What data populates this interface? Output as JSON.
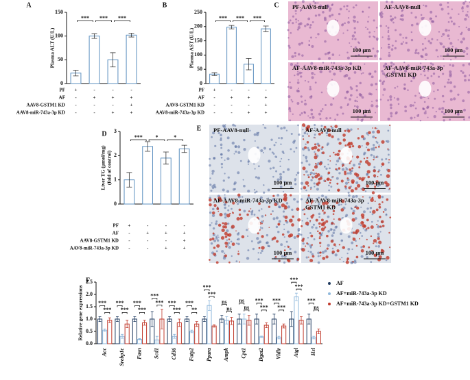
{
  "chart_data": [
    {
      "type": "bar",
      "panel": "A",
      "y_label": "Plasma ALT (U/L)",
      "color": "#5b8fbf",
      "categories": [
        null,
        null,
        null,
        null
      ],
      "values": [
        22,
        100,
        50,
        102
      ],
      "errors": [
        6,
        5,
        15,
        4
      ],
      "ylim": [
        0,
        150
      ],
      "yticks": [
        0,
        50,
        100,
        150
      ],
      "significance": [
        "***",
        "***",
        "***"
      ],
      "conditions": {
        "labels": [
          "PF",
          "AF",
          "AAV8-GSTM1 KD",
          "AAV8-miR-743a-3p KD"
        ],
        "rows": [
          [
            "+",
            "-",
            "-",
            "-"
          ],
          [
            "-",
            "+",
            "+",
            "+"
          ],
          [
            "-",
            "-",
            "-",
            "+"
          ],
          [
            "-",
            "-",
            "+",
            "+"
          ]
        ]
      }
    },
    {
      "type": "bar",
      "panel": "B",
      "y_label": "Plasma AST (U/L)",
      "color": "#5b8fbf",
      "categories": [
        null,
        null,
        null,
        null
      ],
      "values": [
        33,
        198,
        68,
        192
      ],
      "errors": [
        5,
        6,
        20,
        10
      ],
      "ylim": [
        0,
        250
      ],
      "yticks": [
        0,
        50,
        100,
        150,
        200,
        250
      ],
      "significance": [
        "***",
        "***",
        "***"
      ],
      "conditions": {
        "labels": [
          "PF",
          "AF",
          "AAV8-GSTM1 KD",
          "AAV8-miR-743a-3p KD"
        ],
        "rows": [
          [
            "+",
            "-",
            "-",
            "-"
          ],
          [
            "-",
            "+",
            "+",
            "+"
          ],
          [
            "-",
            "-",
            "-",
            "+"
          ],
          [
            "-",
            "-",
            "+",
            "+"
          ]
        ]
      }
    },
    {
      "type": "bar",
      "panel": "D",
      "y_label": "Liver TG (μmol/mg)",
      "y_label_2": "(fold of control)",
      "color": "#5b8fbf",
      "categories": [
        null,
        null,
        null,
        null
      ],
      "values": [
        1.0,
        2.38,
        1.9,
        2.28
      ],
      "errors": [
        0.3,
        0.2,
        0.25,
        0.15
      ],
      "ylim": [
        0,
        3
      ],
      "yticks": [
        0,
        1,
        2,
        3
      ],
      "significance": [
        "***",
        "*",
        "*"
      ],
      "conditions": {
        "labels": [
          "PF",
          "AF",
          "AAV8-GSTM1 KD",
          "AAV8-miR-743a-3p KD"
        ],
        "rows": [
          [
            "+",
            "-",
            "-",
            "-"
          ],
          [
            "-",
            "+",
            "+",
            "+"
          ],
          [
            "-",
            "-",
            "-",
            "+"
          ],
          [
            "-",
            "-",
            "+",
            "+"
          ]
        ]
      }
    },
    {
      "type": "grouped-bar",
      "panel": "F",
      "y_label": "Relative gene expressions",
      "categories": [
        "Acc",
        "Srebp1c",
        "Fasn",
        "Scd1",
        "Cd36",
        "Fatp2",
        "Ppara",
        "Ampk",
        "Cpt1",
        "Dgat2",
        "Vldlr",
        "Atgl",
        "Hsl"
      ],
      "series": [
        {
          "name": "AF",
          "color": "#1f3a5f",
          "values": [
            1.0,
            1.0,
            1.0,
            1.0,
            1.0,
            1.0,
            1.0,
            1.0,
            1.0,
            1.0,
            1.0,
            1.0,
            1.0
          ],
          "errors": [
            0.1,
            0.1,
            0.1,
            0.3,
            0.1,
            0.1,
            0.1,
            0.15,
            0.2,
            0.2,
            0.2,
            0.3,
            0.2
          ]
        },
        {
          "name": "AF+miR-743a-3p KD",
          "color": "#8fb8dc",
          "values": [
            0.55,
            0.3,
            0.18,
            0.15,
            0.3,
            0.5,
            1.55,
            0.95,
            1.0,
            0.28,
            0.25,
            1.9,
            0.25
          ],
          "errors": [
            0.05,
            0.08,
            0.03,
            0.15,
            0.08,
            0.05,
            0.2,
            0.15,
            0.2,
            0.03,
            0.05,
            0.15,
            0.05
          ]
        },
        {
          "name": "AF+miR-743a-3p KD+GSTM1 KD",
          "color": "#c0392b",
          "values": [
            0.95,
            0.8,
            0.85,
            1.0,
            0.85,
            0.8,
            0.72,
            0.92,
            0.95,
            0.75,
            0.72,
            0.95,
            0.5
          ],
          "errors": [
            0.1,
            0.15,
            0.1,
            0.4,
            0.15,
            0.1,
            0.05,
            0.15,
            0.2,
            0.1,
            0.08,
            0.15,
            0.1
          ]
        }
      ],
      "ylim": [
        0,
        2.5
      ],
      "yticks": [
        {
          "value": 0,
          "label": "0.0"
        },
        {
          "value": 0.5,
          "label": "0.5"
        },
        {
          "value": 1,
          "label": "1.0"
        },
        {
          "value": 1.5,
          "label": "1.5"
        },
        {
          "value": 2,
          "label": "2.0"
        },
        {
          "value": 2.5,
          "label": "2.5"
        }
      ],
      "significance": [
        [
          "***",
          "***"
        ],
        [
          "***",
          "***"
        ],
        [
          "***",
          "***"
        ],
        [
          "***",
          "***"
        ],
        [
          "***",
          "***"
        ],
        [
          "***",
          "**"
        ],
        [
          "***",
          "***"
        ],
        [
          "ns",
          "ns"
        ],
        [
          "ns",
          "ns"
        ],
        [
          "***",
          "***"
        ],
        [
          "***",
          "***"
        ],
        [
          "***",
          "***"
        ],
        [
          "***",
          "ns"
        ]
      ]
    }
  ],
  "micrographs": [
    {
      "panel": "C",
      "images": [
        {
          "lines": [
            "PF-AAV8-null"
          ],
          "scale": "100 μm"
        },
        {
          "lines": [
            "AF-AAV8-null"
          ],
          "scale": "100 μm"
        },
        {
          "lines": [
            "AF-AAV8-miR-743a-3p KD"
          ],
          "scale": "100 μm"
        },
        {
          "lines": [
            "AF-AAV8-miR-743a-3p",
            "-GSTM1 KD"
          ],
          "scale": "100 μm"
        }
      ]
    },
    {
      "panel": "E",
      "images": [
        {
          "lines": [
            "PF-AAV8-null"
          ],
          "scale": "100 μm"
        },
        {
          "lines": [
            "AF-AAV8-null"
          ],
          "scale": "100 μm"
        },
        {
          "lines": [
            "AF-AAV8-miR-743a-3p KD"
          ],
          "scale": "100 μm"
        },
        {
          "lines": [
            "AF-AAV8-miR-743a-3p",
            "GSTM1 KD"
          ],
          "scale": "100 μm"
        }
      ]
    }
  ]
}
